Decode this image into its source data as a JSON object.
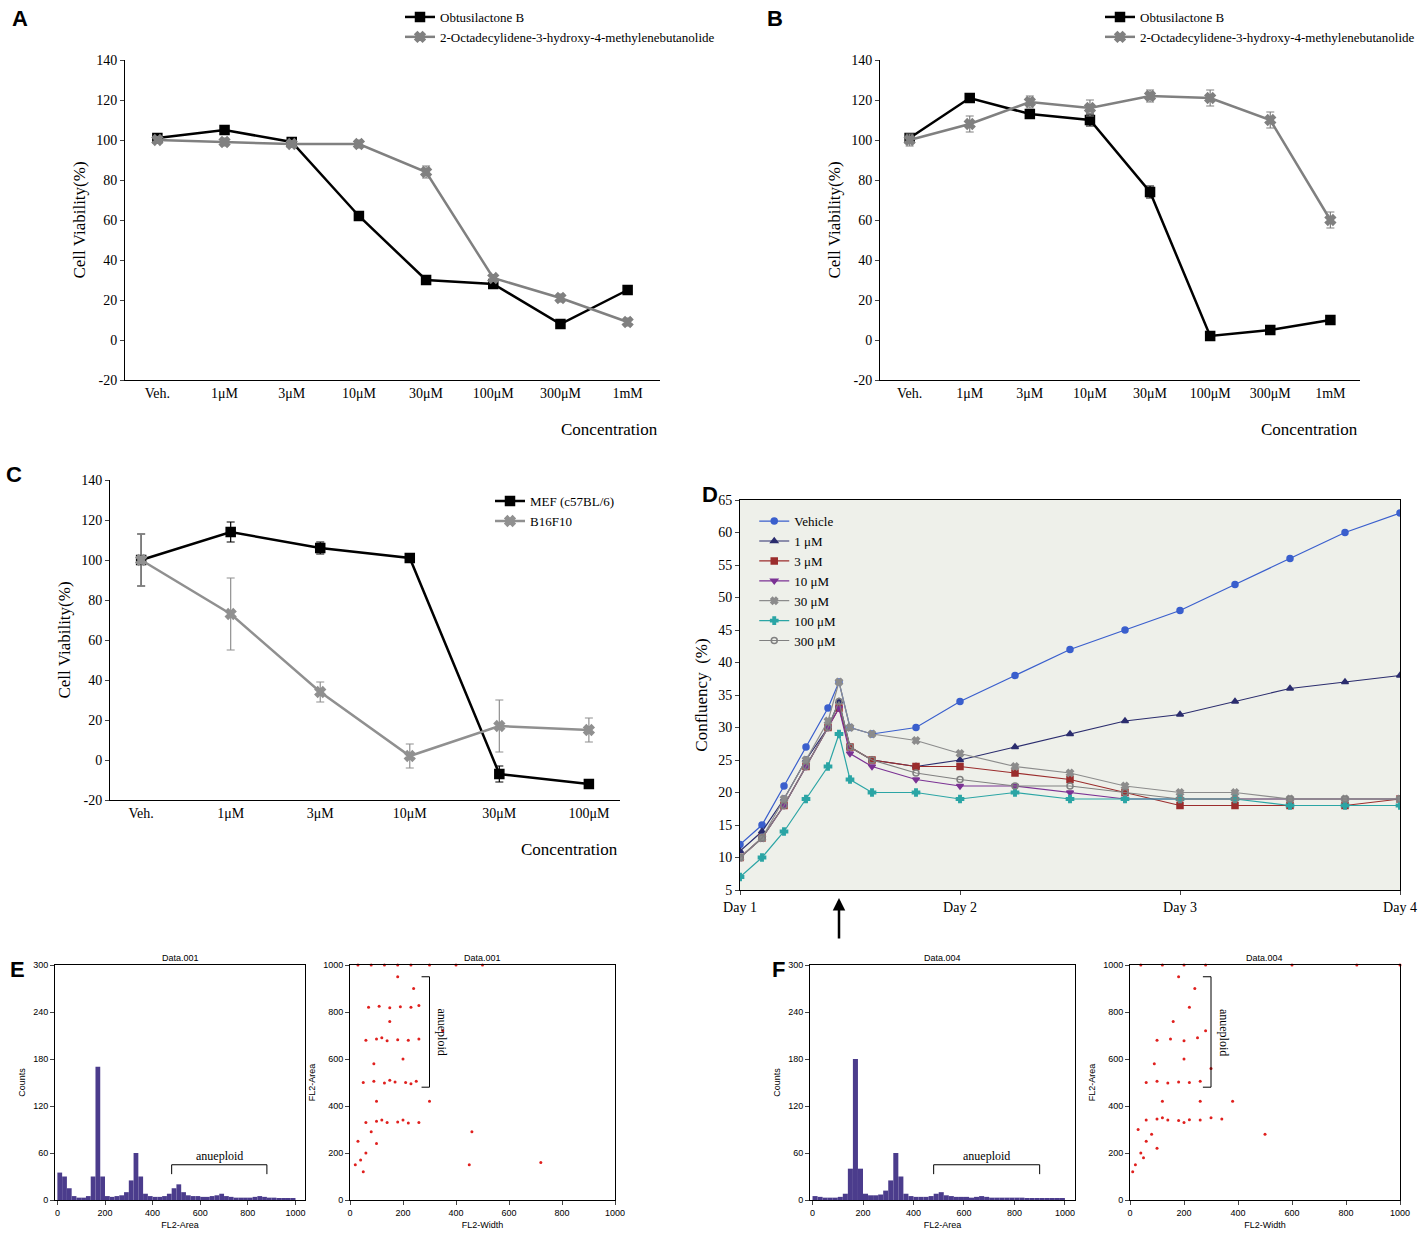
{
  "chart_data": [
    {
      "panel": "A",
      "type": "line",
      "categories": [
        "Veh.",
        "1μM",
        "3μM",
        "10μM",
        "30μM",
        "100μM",
        "300μM",
        "1mM"
      ],
      "x_label": "Concentration",
      "y_label": "Cell Viability(%)",
      "ylim": [
        -20,
        140
      ],
      "yticks": [
        -20,
        0,
        20,
        40,
        60,
        80,
        100,
        120,
        140
      ],
      "legend": "top",
      "series": [
        {
          "name": "Obtusilactone B",
          "color": "#000000",
          "marker": "square",
          "values": [
            101,
            105,
            99,
            62,
            30,
            28,
            8,
            25
          ],
          "errors": [
            1,
            1,
            1,
            2,
            1,
            1,
            1,
            1
          ]
        },
        {
          "name": "2-Octadecylidene-3-hydroxy-4-methylenebutanolide",
          "color": "#808080",
          "marker": "x",
          "values": [
            100,
            99,
            98,
            98,
            84,
            31,
            21,
            9
          ],
          "errors": [
            1,
            2,
            1,
            2,
            3,
            1,
            2,
            2
          ]
        }
      ]
    },
    {
      "panel": "B",
      "type": "line",
      "categories": [
        "Veh.",
        "1μM",
        "3μM",
        "10μM",
        "30μM",
        "100μM",
        "300μM",
        "1mM"
      ],
      "x_label": "Concentration",
      "y_label": "Cell Viability(%)",
      "ylim": [
        -20,
        140
      ],
      "yticks": [
        -20,
        0,
        20,
        40,
        60,
        80,
        100,
        120,
        140
      ],
      "legend": "top",
      "series": [
        {
          "name": "Obtusilactone B",
          "color": "#000000",
          "marker": "square",
          "values": [
            101,
            121,
            113,
            110,
            74,
            2,
            5,
            10
          ],
          "errors": [
            2,
            2,
            2,
            3,
            3,
            1,
            1,
            1
          ]
        },
        {
          "name": "2-Octadecylidene-3-hydroxy-4-methylenebutanolide",
          "color": "#808080",
          "marker": "x",
          "values": [
            100,
            108,
            119,
            116,
            122,
            121,
            110,
            60
          ],
          "errors": [
            3,
            4,
            3,
            4,
            3,
            4,
            4,
            4
          ]
        }
      ]
    },
    {
      "panel": "C",
      "type": "line",
      "categories": [
        "Veh.",
        "1μM",
        "3μM",
        "10μM",
        "30μM",
        "100μM"
      ],
      "x_label": "Concentration",
      "y_label": "Cell Viability(%)",
      "ylim": [
        -20,
        140
      ],
      "yticks": [
        -20,
        0,
        20,
        40,
        60,
        80,
        100,
        120,
        140
      ],
      "legend": "top right",
      "series": [
        {
          "name": "MEF (c57BL/6)",
          "color": "#000000",
          "marker": "square",
          "values": [
            100,
            114,
            106,
            101,
            -7,
            -12
          ],
          "errors": [
            13,
            5,
            3,
            1,
            4,
            1
          ]
        },
        {
          "name": "B16F10",
          "color": "#909090",
          "marker": "x",
          "values": [
            100,
            73,
            34,
            2,
            17,
            15
          ],
          "errors": [
            13,
            18,
            5,
            6,
            13,
            6
          ]
        }
      ]
    },
    {
      "panel": "D",
      "type": "line",
      "x": [
        1.0,
        1.1,
        1.2,
        1.3,
        1.4,
        1.45,
        1.5,
        1.6,
        1.8,
        2.0,
        2.25,
        2.5,
        2.75,
        3.0,
        3.25,
        3.5,
        3.75,
        4.0
      ],
      "xlim": [
        1,
        4
      ],
      "xticks": [
        {
          "value": 1,
          "label": "Day 1"
        },
        {
          "value": 2,
          "label": "Day 2"
        },
        {
          "value": 3,
          "label": "Day 3"
        },
        {
          "value": 4,
          "label": "Day 4"
        }
      ],
      "y_label": "Confluency  (%)",
      "ylim": [
        5,
        65
      ],
      "yticks": [
        5,
        10,
        15,
        20,
        25,
        30,
        35,
        40,
        45,
        50,
        55,
        60,
        65
      ],
      "legend": "top left",
      "arrow_x": 1.45,
      "series": [
        {
          "name": "Vehicle",
          "color": "#3a5fcd",
          "marker": "circle",
          "values": [
            12,
            15,
            21,
            27,
            33,
            37,
            30,
            29,
            30,
            34,
            38,
            42,
            45,
            48,
            52,
            56,
            60,
            63
          ]
        },
        {
          "name": "1 μM",
          "color": "#2b2d6e",
          "marker": "triangle-up",
          "values": [
            11,
            14,
            19,
            25,
            30,
            34,
            27,
            25,
            24,
            25,
            27,
            29,
            31,
            32,
            34,
            36,
            37,
            38
          ]
        },
        {
          "name": "3 μM",
          "color": "#9b2d2d",
          "marker": "square",
          "values": [
            10,
            13,
            18,
            24,
            30,
            33,
            27,
            25,
            24,
            24,
            23,
            22,
            20,
            18,
            18,
            18,
            18,
            19
          ]
        },
        {
          "name": "10 μM",
          "color": "#7b3294",
          "marker": "triangle-down",
          "values": [
            10,
            13,
            18,
            24,
            30,
            33,
            26,
            24,
            22,
            21,
            21,
            20,
            19,
            19,
            19,
            19,
            19,
            19
          ]
        },
        {
          "name": "30 μM",
          "color": "#8c8c8c",
          "marker": "x",
          "values": [
            10,
            13,
            19,
            25,
            31,
            37,
            30,
            29,
            28,
            26,
            24,
            23,
            21,
            20,
            20,
            19,
            19,
            19
          ]
        },
        {
          "name": "100 μM",
          "color": "#2ba5a5",
          "marker": "cross",
          "values": [
            7,
            10,
            14,
            19,
            24,
            29,
            22,
            20,
            20,
            19,
            20,
            19,
            19,
            19,
            19,
            18,
            18,
            18
          ]
        },
        {
          "name": "300 μM",
          "color": "#808080",
          "marker": "circle-open",
          "values": [
            10,
            13,
            18,
            24,
            30,
            34,
            27,
            25,
            23,
            22,
            21,
            21,
            20,
            19,
            19,
            19,
            19,
            19
          ]
        }
      ]
    },
    {
      "panel": "E",
      "type": "histogram",
      "title": "Data.001",
      "x_label": "FL2-Area",
      "y_label": "Counts",
      "color": "#4b3c8c",
      "bins": [
        0,
        20,
        40,
        60,
        80,
        100,
        120,
        140,
        160,
        180,
        200,
        220,
        240,
        260,
        280,
        300,
        320,
        340,
        360,
        380,
        400,
        420,
        440,
        460,
        480,
        500,
        520,
        540,
        560,
        580,
        600,
        620,
        640,
        660,
        680,
        700,
        720,
        740,
        760,
        780,
        800,
        820,
        840,
        860,
        880,
        900,
        920,
        940,
        960,
        980,
        1000
      ],
      "counts": [
        35,
        30,
        15,
        5,
        3,
        3,
        5,
        30,
        170,
        30,
        5,
        4,
        5,
        6,
        10,
        25,
        60,
        30,
        8,
        5,
        4,
        4,
        5,
        8,
        15,
        20,
        10,
        6,
        5,
        5,
        4,
        4,
        5,
        6,
        8,
        5,
        4,
        3,
        3,
        3,
        3,
        4,
        5,
        4,
        3,
        3,
        2,
        2,
        2,
        2
      ],
      "xlim": [
        -10,
        1040
      ],
      "xticks": [
        0,
        200,
        400,
        600,
        800,
        1000
      ],
      "ylim": [
        0,
        300
      ],
      "yticks": [
        0,
        60,
        120,
        180,
        240,
        300
      ],
      "annotation": {
        "text": "anueploid",
        "x": [
          480,
          880
        ],
        "y": 45
      }
    },
    {
      "type": "scatter",
      "title": "Data.001",
      "x_label": "FL2-Width",
      "y_label": "FL2-Area",
      "color": "#e0201e",
      "x": [
        20,
        40,
        60,
        30,
        80,
        50,
        100,
        60,
        100,
        140,
        180,
        220,
        260,
        120,
        200,
        50,
        90,
        130,
        170,
        210,
        250,
        150,
        230,
        60,
        100,
        140,
        180,
        220,
        260,
        120,
        70,
        110,
        150,
        190,
        230,
        260,
        30,
        80,
        130,
        180,
        230,
        300,
        400,
        500,
        100,
        200,
        150,
        240,
        180,
        90,
        450,
        720,
        300,
        350,
        460
      ],
      "y": [
        150,
        170,
        200,
        250,
        290,
        120,
        240,
        330,
        335,
        330,
        332,
        328,
        330,
        340,
        340,
        500,
        505,
        498,
        502,
        500,
        505,
        510,
        495,
        680,
        685,
        678,
        682,
        680,
        685,
        690,
        820,
        825,
        818,
        822,
        820,
        828,
        1000,
        1000,
        1000,
        1000,
        1000,
        1000,
        1000,
        1000,
        420,
        600,
        760,
        900,
        950,
        580,
        150,
        160,
        420,
        720,
        290
      ],
      "xlim": [
        0,
        1000
      ],
      "xticks": [
        0,
        200,
        400,
        600,
        800,
        1000
      ],
      "ylim": [
        0,
        1000
      ],
      "yticks": [
        0,
        200,
        400,
        600,
        800,
        1000
      ],
      "annotation": {
        "text": "anueploid",
        "x": 300,
        "y": [
          480,
          950
        ]
      }
    },
    {
      "panel": "F",
      "type": "histogram",
      "title": "Data.004",
      "x_label": "FL2-Area",
      "y_label": "Counts",
      "color": "#4b3c8c",
      "bins": [
        0,
        20,
        40,
        60,
        80,
        100,
        120,
        140,
        160,
        180,
        200,
        220,
        240,
        260,
        280,
        300,
        320,
        340,
        360,
        380,
        400,
        420,
        440,
        460,
        480,
        500,
        520,
        540,
        560,
        580,
        600,
        620,
        640,
        660,
        680,
        700,
        720,
        740,
        760,
        780,
        800,
        820,
        840,
        860,
        880,
        900,
        920,
        940,
        960,
        980,
        1000
      ],
      "counts": [
        5,
        4,
        3,
        3,
        3,
        4,
        8,
        40,
        180,
        40,
        8,
        6,
        6,
        7,
        12,
        25,
        60,
        30,
        8,
        5,
        4,
        4,
        4,
        5,
        8,
        10,
        6,
        5,
        4,
        4,
        4,
        3,
        4,
        5,
        4,
        3,
        3,
        3,
        3,
        3,
        3,
        3,
        2,
        2,
        2,
        2,
        2,
        2,
        2,
        2
      ],
      "xlim": [
        -10,
        1040
      ],
      "xticks": [
        0,
        200,
        400,
        600,
        800,
        1000
      ],
      "ylim": [
        0,
        300
      ],
      "yticks": [
        0,
        60,
        120,
        180,
        240,
        300
      ],
      "annotation": {
        "text": "anueploid",
        "x": [
          480,
          900
        ],
        "y": 45
      }
    },
    {
      "type": "scatter",
      "title": "Data.004",
      "x_label": "FL2-Width",
      "y_label": "FL2-Area",
      "color": "#e0201e",
      "x": [
        20,
        40,
        60,
        30,
        80,
        50,
        100,
        10,
        60,
        100,
        140,
        180,
        220,
        260,
        120,
        200,
        300,
        340,
        60,
        100,
        140,
        180,
        220,
        260,
        100,
        150,
        200,
        250,
        120,
        200,
        160,
        240,
        180,
        90,
        220,
        300,
        280,
        260,
        40,
        120,
        200,
        280,
        600,
        840,
        1000,
        500,
        380
      ],
      "y": [
        150,
        200,
        250,
        300,
        280,
        180,
        220,
        120,
        340,
        345,
        340,
        338,
        342,
        340,
        350,
        330,
        350,
        345,
        500,
        505,
        498,
        502,
        500,
        505,
        680,
        685,
        678,
        690,
        420,
        600,
        760,
        900,
        950,
        580,
        820,
        560,
        720,
        420,
        1000,
        1000,
        1000,
        1000,
        1000,
        1000,
        1000,
        280,
        420
      ],
      "xlim": [
        0,
        1000
      ],
      "xticks": [
        0,
        200,
        400,
        600,
        800,
        1000
      ],
      "ylim": [
        0,
        1000
      ],
      "yticks": [
        0,
        200,
        400,
        600,
        800,
        1000
      ],
      "annotation": {
        "text": "anueploid",
        "x": 300,
        "y": [
          480,
          950
        ]
      }
    }
  ]
}
